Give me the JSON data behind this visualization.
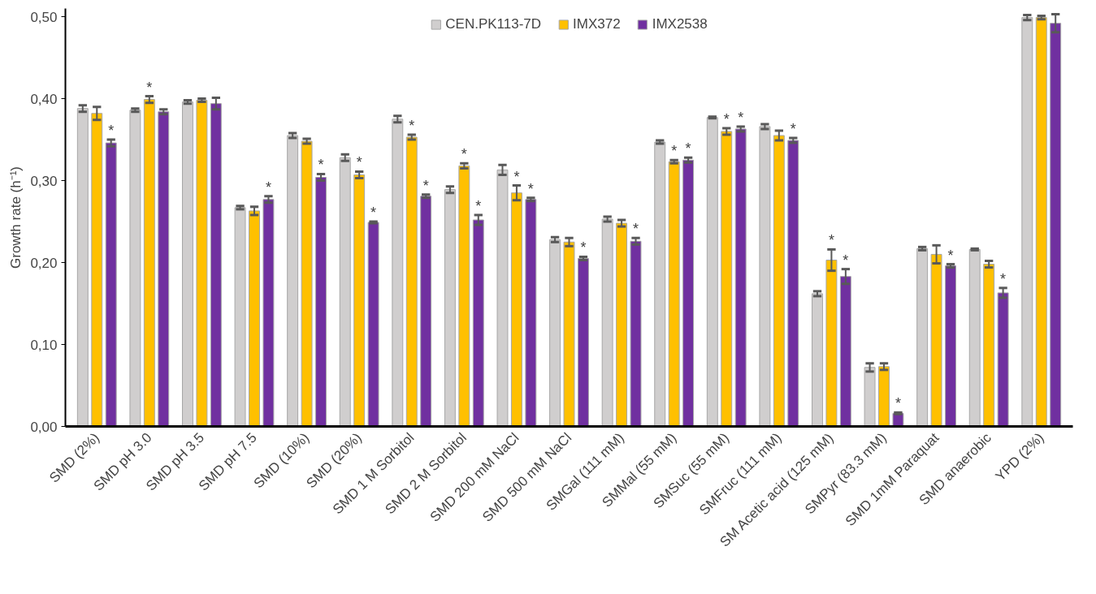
{
  "chart_data": {
    "type": "bar",
    "ylabel": "Growth rate (h⁻¹)",
    "categories": [
      "SMD (2%)",
      "SMD pH 3.0",
      "SMD pH 3.5",
      "SMD pH 7.5",
      "SMD (10%)",
      "SMD (20%)",
      "SMD 1 M Sorbitol",
      "SMD 2 M Sorbitol",
      "SMD 200 mM NaCl",
      "SMD 500 mM NaCl",
      "SMGal (111 mM)",
      "SMMal (55 mM)",
      "SMSuc (55 mM)",
      "SMFruc (111 mM)",
      "SM Acetic acid (125 mM)",
      "SMPyr (83.3 mM)",
      "SMD 1mM Paraquat",
      "SMD anaerobic",
      "YPD (2%)"
    ],
    "series": [
      {
        "name": "CEN.PK113-7D",
        "color": "#d0cece",
        "values": [
          0.388,
          0.386,
          0.396,
          0.267,
          0.355,
          0.328,
          0.375,
          0.289,
          0.313,
          0.228,
          0.253,
          0.347,
          0.377,
          0.366,
          0.162,
          0.072,
          0.217,
          0.216,
          0.499
        ],
        "errors": [
          0.004,
          0.002,
          0.002,
          0.002,
          0.003,
          0.004,
          0.004,
          0.004,
          0.006,
          0.003,
          0.003,
          0.002,
          0.001,
          0.003,
          0.003,
          0.005,
          0.002,
          0.001,
          0.003
        ],
        "value_labels": [
          null,
          null,
          null,
          null,
          null,
          null,
          null,
          null,
          null,
          null,
          null,
          null,
          null,
          null,
          null,
          null,
          null,
          null,
          null
        ]
      },
      {
        "name": "IMX372",
        "color": "#ffc000",
        "values": [
          0.382,
          0.399,
          0.398,
          0.263,
          0.348,
          0.307,
          0.353,
          0.318,
          0.285,
          0.225,
          0.248,
          0.323,
          0.36,
          0.355,
          0.203,
          0.073,
          0.21,
          0.198,
          0.499
        ],
        "errors": [
          0.008,
          0.004,
          0.002,
          0.005,
          0.003,
          0.004,
          0.003,
          0.003,
          0.009,
          0.005,
          0.004,
          0.002,
          0.004,
          0.006,
          0.013,
          0.004,
          0.011,
          0.004,
          0.002
        ],
        "value_labels": [
          null,
          "*",
          null,
          null,
          null,
          "*",
          "*",
          "*",
          "*",
          null,
          null,
          "*",
          "*",
          null,
          "*",
          null,
          null,
          null,
          null
        ]
      },
      {
        "name": "IMX2538",
        "color": "#7030a0",
        "values": [
          0.346,
          0.384,
          0.394,
          0.277,
          0.304,
          0.249,
          0.281,
          0.252,
          0.277,
          0.205,
          0.226,
          0.325,
          0.363,
          0.349,
          0.183,
          0.016,
          0.196,
          0.163,
          0.492
        ],
        "errors": [
          0.004,
          0.003,
          0.007,
          0.004,
          0.004,
          0.001,
          0.002,
          0.006,
          0.002,
          0.002,
          0.004,
          0.003,
          0.003,
          0.003,
          0.009,
          0.001,
          0.002,
          0.006,
          0.011
        ],
        "value_labels": [
          "*",
          null,
          null,
          "*",
          "*",
          "*",
          "*",
          "*",
          "*",
          "*",
          "*",
          "*",
          "*",
          "*",
          "*",
          "*",
          "*",
          "*",
          null
        ]
      }
    ],
    "ylim": [
      0,
      0.51
    ],
    "yticks": [
      {
        "value": 0,
        "label": "0,00"
      },
      {
        "value": 0.1,
        "label": "0,10"
      },
      {
        "value": 0.2,
        "label": "0,20"
      },
      {
        "value": 0.3,
        "label": "0,30"
      },
      {
        "value": 0.4,
        "label": "0,40"
      },
      {
        "value": 0.5,
        "label": "0,50"
      }
    ],
    "grid": false,
    "legend": "top"
  }
}
